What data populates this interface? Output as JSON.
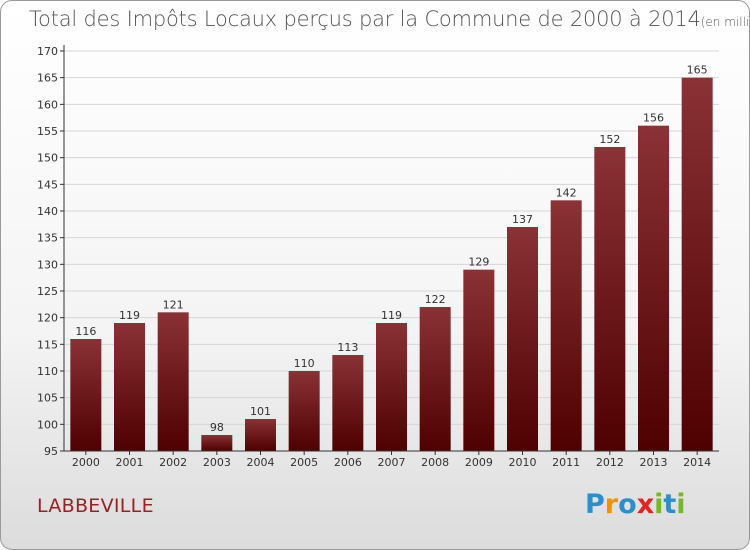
{
  "header": {
    "title": "Total des Impôts Locaux perçus par la Commune de 2000 à 2014",
    "unit": "(en milliers d'€)"
  },
  "commune": "LABBEVILLE",
  "logo": {
    "letters": [
      "P",
      "r",
      "o",
      "x",
      "i",
      "t",
      "i"
    ],
    "colors": [
      "#2a8fd0",
      "#f39200",
      "#2a8fd0",
      "#e52421",
      "#77b829",
      "#2a8fd0",
      "#77b829"
    ]
  },
  "colors": {
    "bar_top": "#8a3236",
    "bar_bottom": "#4f0000",
    "grid": "#d6d6d6",
    "axis": "#333333"
  },
  "chart_data": {
    "type": "bar",
    "title": "Total des Impôts Locaux perçus par la Commune de 2000 à 2014",
    "unit": "(en milliers d'€)",
    "categories": [
      "2000",
      "2001",
      "2002",
      "2003",
      "2004",
      "2005",
      "2006",
      "2007",
      "2008",
      "2009",
      "2010",
      "2011",
      "2012",
      "2013",
      "2014"
    ],
    "values": [
      116,
      119,
      121,
      98,
      101,
      110,
      113,
      119,
      122,
      129,
      137,
      142,
      152,
      156,
      165
    ],
    "ylim": [
      95,
      170
    ],
    "yticks": [
      95,
      100,
      105,
      110,
      115,
      120,
      125,
      130,
      135,
      140,
      145,
      150,
      155,
      160,
      165,
      170
    ],
    "grid": true,
    "data_labels": true
  }
}
